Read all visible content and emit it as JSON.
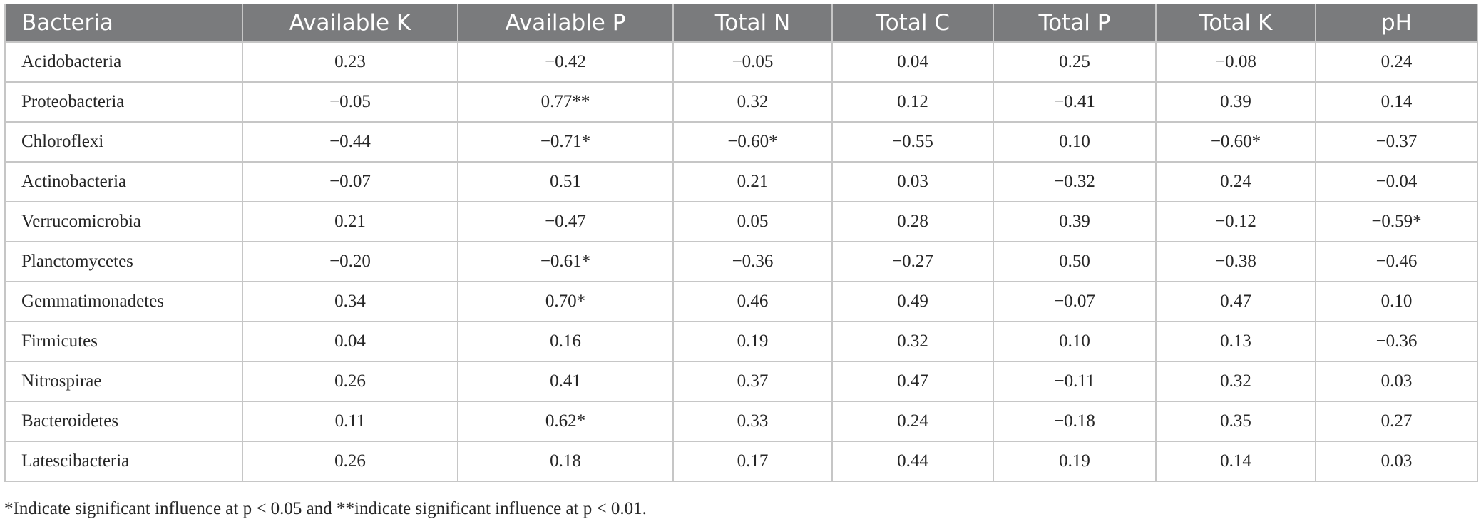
{
  "table": {
    "headers": [
      "Bacteria",
      "Available K",
      "Available P",
      "Total N",
      "Total C",
      "Total P",
      "Total K",
      "pH"
    ],
    "rows": [
      [
        "Acidobacteria",
        "0.23",
        "−0.42",
        "−0.05",
        "0.04",
        "0.25",
        "−0.08",
        "0.24"
      ],
      [
        "Proteobacteria",
        "−0.05",
        "0.77**",
        "0.32",
        "0.12",
        "−0.41",
        "0.39",
        "0.14"
      ],
      [
        "Chloroflexi",
        "−0.44",
        "−0.71*",
        "−0.60*",
        "−0.55",
        "0.10",
        "−0.60*",
        "−0.37"
      ],
      [
        "Actinobacteria",
        "−0.07",
        "0.51",
        "0.21",
        "0.03",
        "−0.32",
        "0.24",
        "−0.04"
      ],
      [
        "Verrucomicrobia",
        "0.21",
        "−0.47",
        "0.05",
        "0.28",
        "0.39",
        "−0.12",
        "−0.59*"
      ],
      [
        "Planctomycetes",
        "−0.20",
        "−0.61*",
        "−0.36",
        "−0.27",
        "0.50",
        "−0.38",
        "−0.46"
      ],
      [
        "Gemmatimonadetes",
        "0.34",
        "0.70*",
        "0.46",
        "0.49",
        "−0.07",
        "0.47",
        "0.10"
      ],
      [
        "Firmicutes",
        "0.04",
        "0.16",
        "0.19",
        "0.32",
        "0.10",
        "0.13",
        "−0.36"
      ],
      [
        "Nitrospirae",
        "0.26",
        "0.41",
        "0.37",
        "0.47",
        "−0.11",
        "0.32",
        "0.03"
      ],
      [
        "Bacteroidetes",
        "0.11",
        "0.62*",
        "0.33",
        "0.24",
        "−0.18",
        "0.35",
        "0.27"
      ],
      [
        "Latescibacteria",
        "0.26",
        "0.18",
        "0.17",
        "0.44",
        "0.19",
        "0.14",
        "0.03"
      ]
    ]
  },
  "footnote": "*Indicate significant influence at p < 0.05 and **indicate significant influence at p < 0.01.",
  "colors": {
    "header_bg": "#7a7b7d",
    "header_text": "#ffffff",
    "grid": "#c6c6c6",
    "body_text": "#262626"
  }
}
